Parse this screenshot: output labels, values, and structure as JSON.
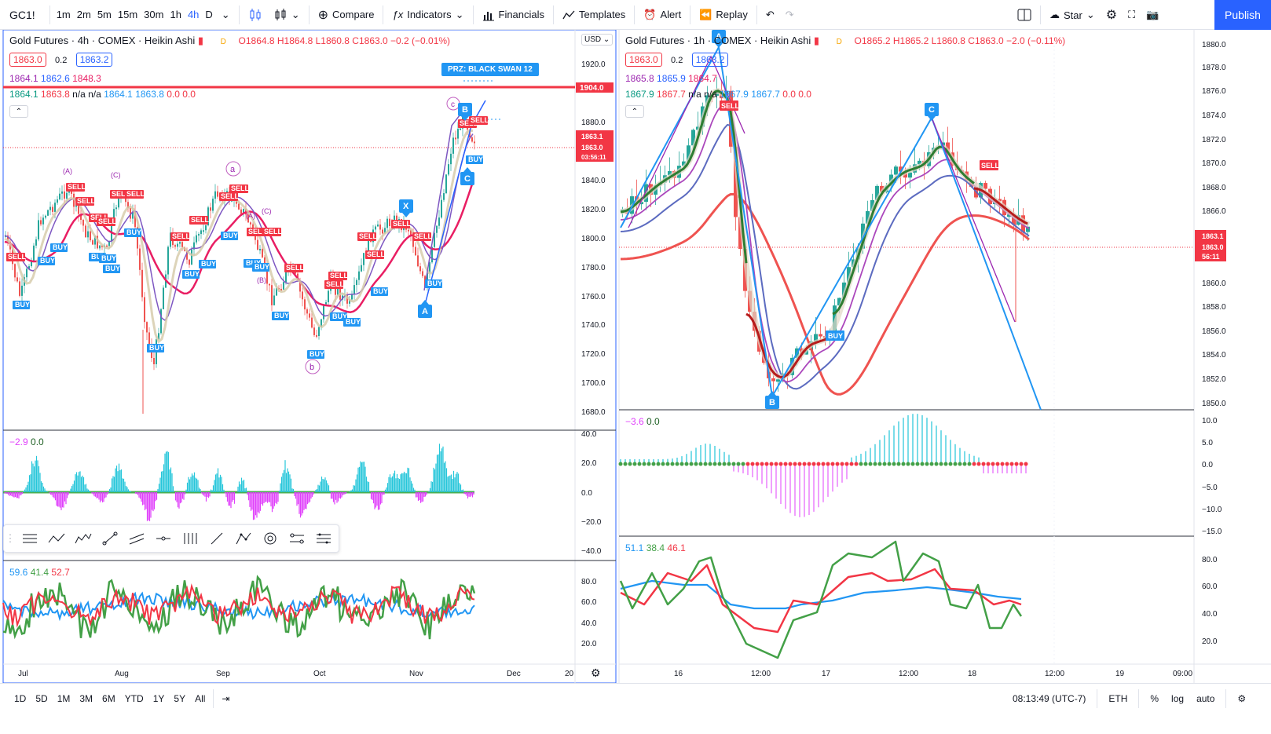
{
  "toolbar": {
    "symbol": "GC1!",
    "intervals": [
      "1m",
      "2m",
      "5m",
      "15m",
      "30m",
      "1h",
      "4h",
      "D"
    ],
    "active_interval": "4h",
    "compare": "Compare",
    "indicators": "Indicators",
    "financials": "Financials",
    "templates": "Templates",
    "alert": "Alert",
    "replay": "Replay",
    "star": "Star",
    "publish": "Publish"
  },
  "left": {
    "title": "Gold Futures · 4h · COMEX · Heikin Ashi",
    "d": "D",
    "ohlc": "O1864.8 H1864.8 L1860.8 C1863.0 −0.2 (−0.01%)",
    "bid": "1863.0",
    "spread": "0.2",
    "ask": "1863.2",
    "ma_row1": [
      "1864.1",
      "1862.6",
      "1848.3"
    ],
    "ma_row2": [
      "1864.1",
      "1863.8",
      "n/a",
      "n/a",
      "1864.1",
      "1863.8",
      "0.0",
      "0.0"
    ],
    "currency": "USD",
    "price_ticks": [
      "1920.0",
      "1904.0",
      "1880.0",
      "1863.1",
      "1863.0",
      "03:56:11",
      "1840.0",
      "1820.0",
      "1800.0",
      "1780.0",
      "1760.0",
      "1740.0",
      "1720.0",
      "1700.0",
      "1680.0"
    ],
    "prz": "PRZ: BLACK SWAN 12",
    "osc_legend": [
      "−2.9",
      "0.0"
    ],
    "osc_ticks": [
      "40.0",
      "20.0",
      "0.0",
      "−20.0",
      "−40.0"
    ],
    "rsi_legend": [
      "59.6",
      "41.4",
      "52.7"
    ],
    "rsi_ticks": [
      "80.0",
      "60.0",
      "40.0",
      "20.0"
    ],
    "x_ticks": [
      "Jul",
      "Aug",
      "Sep",
      "Oct",
      "Nov",
      "Dec",
      "20"
    ],
    "annot": {
      "a": "a",
      "b": "b",
      "c": "c",
      "A_big": "A",
      "B_big": "B",
      "C_big": "C",
      "X": "X",
      "lA": "(A)",
      "lB": "(B)",
      "lC": "(C)",
      "lA2": "(A)",
      "lC2": "(C)"
    }
  },
  "right": {
    "title": "Gold Futures · 1h · COMEX · Heikin Ashi",
    "d": "D",
    "ohlc": "O1865.2 H1865.2 L1860.8 C1863.0 −2.0 (−0.11%)",
    "bid": "1863.0",
    "spread": "0.2",
    "ask": "1863.2",
    "ma_row1": [
      "1865.8",
      "1865.9",
      "1864.7"
    ],
    "ma_row2": [
      "1867.9",
      "1867.7",
      "n/a",
      "n/a",
      "1867.9",
      "1867.7",
      "0.0",
      "0.0"
    ],
    "price_ticks": [
      "1880.0",
      "1878.0",
      "1876.0",
      "1874.0",
      "1872.0",
      "1870.0",
      "1868.0",
      "1866.0",
      "1863.1",
      "1863.0",
      "56:11",
      "1860.0",
      "1858.0",
      "1856.0",
      "1854.0",
      "1852.0",
      "1850.0"
    ],
    "osc_legend": [
      "−3.6",
      "0.0"
    ],
    "osc_ticks": [
      "10.0",
      "5.0",
      "0.0",
      "−5.0",
      "−10.0",
      "−15.0"
    ],
    "rsi_legend": [
      "51.1",
      "38.4",
      "46.1"
    ],
    "rsi_ticks": [
      "80.0",
      "60.0",
      "40.0",
      "20.0"
    ],
    "x_ticks": [
      "16",
      "12:00",
      "17",
      "12:00",
      "18",
      "12:00",
      "19",
      "09:00"
    ],
    "annot": {
      "A": "A",
      "B": "B",
      "C": "C"
    }
  },
  "tags": {
    "sell": "SELL",
    "buy": "BUY"
  },
  "bottom": {
    "ranges": [
      "1D",
      "5D",
      "1M",
      "3M",
      "6M",
      "YTD",
      "1Y",
      "5Y",
      "All"
    ],
    "time": "08:13:49 (UTC-7)",
    "session": "ETH",
    "pct": "%",
    "log": "log",
    "auto": "auto"
  },
  "colors": {
    "red": "#f23645",
    "green": "#089981",
    "blue": "#2962ff",
    "purple": "#9c27b0"
  }
}
